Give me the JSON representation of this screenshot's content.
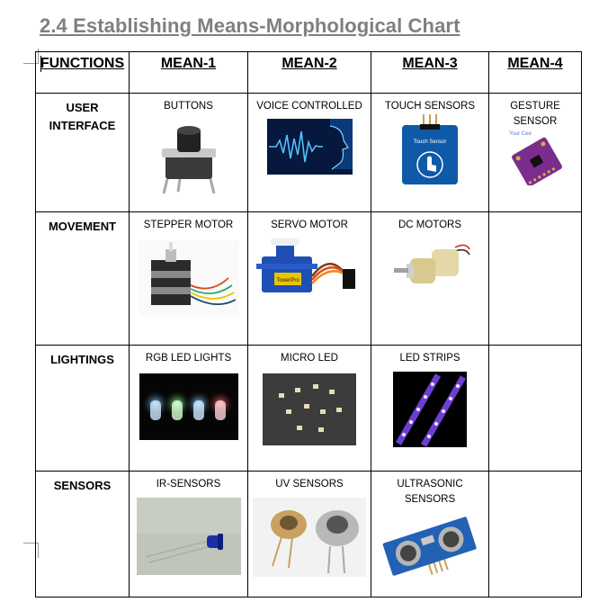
{
  "heading": "2.4 Establishing Means-Morphological Chart",
  "columns": [
    "FUNCTIONS",
    "MEAN-1",
    "MEAN-2",
    "MEAN-3",
    "MEAN-4"
  ],
  "rows": [
    {
      "function": "USER INTERFACE",
      "means": [
        "BUTTONS",
        "VOICE CONTROLLED",
        "TOUCH SENSORS",
        "GESTURE SENSOR"
      ]
    },
    {
      "function": "MOVEMENT",
      "means": [
        "STEPPER MOTOR",
        "SERVO MOTOR",
        "DC MOTORS",
        ""
      ]
    },
    {
      "function": "LIGHTINGS",
      "means": [
        "RGB LED LIGHTS",
        "MICRO LED",
        "LED STRIPS",
        ""
      ]
    },
    {
      "function": "SENSORS",
      "means": [
        "IR-SENSORS",
        "UV SENSORS",
        "ULTRASONIC SENSORS",
        ""
      ]
    }
  ],
  "image_labels": {
    "touch_board": "Touch Sensor",
    "servo_brand": "TowerPro",
    "gesture_brand": "Your Cee"
  }
}
